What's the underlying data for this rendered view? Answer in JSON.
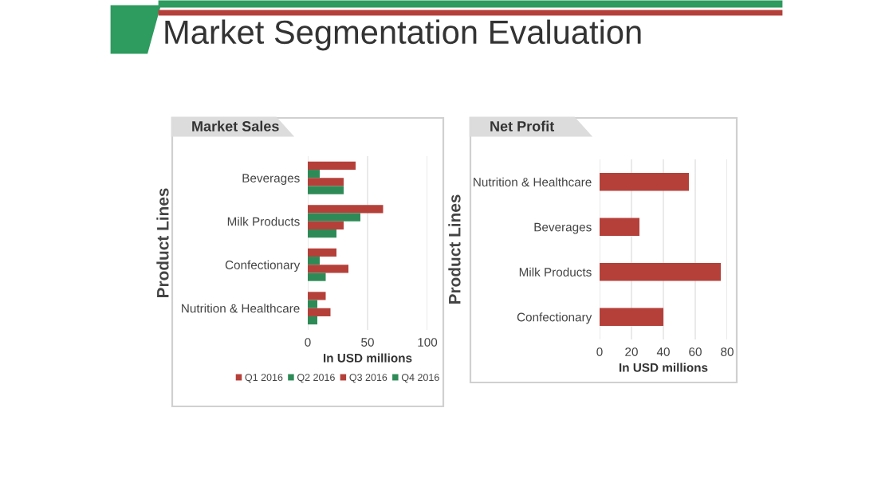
{
  "chart_data": [
    {
      "type": "bar",
      "orientation": "horizontal",
      "title": "Market Sales",
      "xlabel": "In USD millions",
      "ylabel": "Product Lines",
      "annotations": [
        "Market Segmentation Evaluation"
      ],
      "categories": [
        "Beverages",
        "Milk Products",
        "Confectionary",
        "Nutrition & Healthcare"
      ],
      "series": [
        {
          "name": "Q1 2016",
          "color": "#b5403a",
          "values": [
            40,
            63,
            24,
            15
          ]
        },
        {
          "name": "Q2 2016",
          "color": "#2e8b57",
          "values": [
            10,
            44,
            10,
            8
          ]
        },
        {
          "name": "Q3 2016",
          "color": "#b5403a",
          "values": [
            30,
            30,
            34,
            19
          ]
        },
        {
          "name": "Q4 2016",
          "color": "#2e8b57",
          "values": [
            30,
            24,
            15,
            8
          ]
        }
      ],
      "xlim": [
        0,
        100
      ],
      "xticks": [
        0,
        50,
        100
      ],
      "grid": "x",
      "legend": "bottom"
    },
    {
      "type": "bar",
      "orientation": "horizontal",
      "title": "Net Profit",
      "xlabel": "In USD millions",
      "ylabel": "Product Lines",
      "categories": [
        "Nutrition & Healthcare",
        "Beverages",
        "Milk Products",
        "Confectionary"
      ],
      "series": [
        {
          "color": "#b5403a",
          "values": [
            56,
            25,
            76,
            40
          ]
        }
      ],
      "xlim": [
        0,
        80
      ],
      "xticks": [
        0,
        20,
        40,
        60,
        80
      ],
      "grid": "x"
    }
  ]
}
